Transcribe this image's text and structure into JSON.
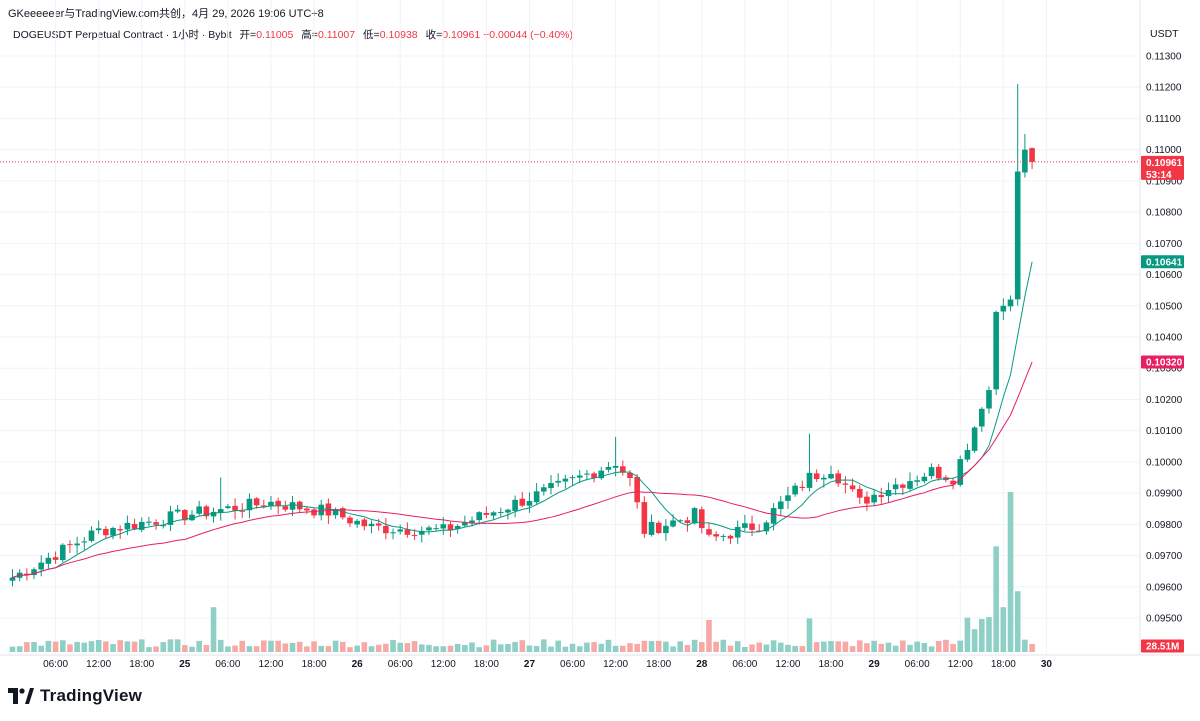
{
  "caption": "GKeeeeeer与TradingView.com共创，4月 29, 2026 19:06 UTC+8",
  "legend": {
    "symbol": "DOGEUSDT Perpetual Contract · 1小时 · Bybit",
    "open_label": "开=",
    "open": "0.11005",
    "high_label": "高=",
    "high": "0.11007",
    "low_label": "低=",
    "low": "0.10938",
    "close_label": "收=",
    "close": "0.10961",
    "change": "−0.00044 (−0.40%)"
  },
  "currency": "USDT",
  "brand": "TradingView",
  "colors": {
    "up": "#089981",
    "down": "#f23645",
    "vol_up": "#8ed0c6",
    "vol_down": "#f7a9a7",
    "ma_fast": "#089981",
    "ma_slow": "#e91e63"
  },
  "tags": {
    "last_price": "0.10961",
    "countdown": "53:14",
    "ma_fast": "0.10641",
    "ma_slow": "0.10320",
    "volume": "28.51M"
  },
  "chart_data": {
    "type": "candlestick",
    "ylim": [
      0.0945,
      0.1135
    ],
    "y_ticks": [
      "0.09500",
      "0.09600",
      "0.09700",
      "0.09800",
      "0.09900",
      "0.10000",
      "0.10100",
      "0.10200",
      "0.10300",
      "0.10400",
      "0.10500",
      "0.10600",
      "0.10700",
      "0.10800",
      "0.10900",
      "0.11000",
      "0.11100",
      "0.11200",
      "0.11300"
    ],
    "x_ticks": [
      "06:00",
      "12:00",
      "18:00",
      "25",
      "06:00",
      "12:00",
      "18:00",
      "26",
      "06:00",
      "12:00",
      "18:00",
      "27",
      "06:00",
      "12:00",
      "18:00",
      "28",
      "06:00",
      "12:00",
      "18:00",
      "29",
      "06:00",
      "12:00",
      "18:00",
      "30"
    ],
    "x_tick_bar_index": [
      6,
      12,
      18,
      24,
      30,
      36,
      42,
      48,
      54,
      60,
      66,
      72,
      78,
      84,
      90,
      96,
      102,
      108,
      114,
      120,
      126,
      132,
      138,
      144
    ],
    "last_price": 0.10961,
    "ma_fast_last": 0.10641,
    "ma_slow_last": 0.1032,
    "volume_last": "28.51M",
    "key_points": [
      {
        "bar": 0,
        "close": 0.0963
      },
      {
        "bar": 12,
        "close": 0.0978
      },
      {
        "bar": 24,
        "close": 0.0983
      },
      {
        "bar": 30,
        "close": 0.0985
      },
      {
        "bar": 36,
        "close": 0.0987
      },
      {
        "bar": 44,
        "close": 0.0984
      },
      {
        "bar": 50,
        "close": 0.0979
      },
      {
        "bar": 60,
        "close": 0.0978
      },
      {
        "bar": 68,
        "close": 0.0985
      },
      {
        "bar": 76,
        "close": 0.0992
      },
      {
        "bar": 84,
        "close": 0.1
      },
      {
        "bar": 86,
        "close": 0.0994
      },
      {
        "bar": 88,
        "close": 0.0978
      },
      {
        "bar": 95,
        "close": 0.0983
      },
      {
        "bar": 97,
        "close": 0.0975
      },
      {
        "bar": 104,
        "close": 0.098
      },
      {
        "bar": 111,
        "close": 0.0995
      },
      {
        "bar": 114,
        "close": 0.0998
      },
      {
        "bar": 118,
        "close": 0.0987
      },
      {
        "bar": 122,
        "close": 0.0992
      },
      {
        "bar": 128,
        "close": 0.0997
      },
      {
        "bar": 131,
        "close": 0.0995
      },
      {
        "bar": 134,
        "close": 0.1011
      },
      {
        "bar": 136,
        "close": 0.1023
      },
      {
        "bar": 137,
        "close": 0.1048
      },
      {
        "bar": 139,
        "close": 0.1052
      },
      {
        "bar": 140,
        "close": 0.1093
      },
      {
        "bar": 141,
        "close": 0.11
      },
      {
        "bar": 142,
        "close": 0.1096
      }
    ],
    "spikes": [
      {
        "bar": 29,
        "high": 0.0995
      },
      {
        "bar": 84,
        "high": 0.1008
      },
      {
        "bar": 111,
        "high": 0.1009
      },
      {
        "bar": 140,
        "high": 0.1121
      },
      {
        "bar": 141,
        "high": 0.1105
      }
    ],
    "volume_spikes": [
      {
        "bar": 28,
        "v": 0.28
      },
      {
        "bar": 97,
        "v": 0.2
      },
      {
        "bar": 111,
        "v": 0.21
      },
      {
        "bar": 137,
        "v": 0.66
      },
      {
        "bar": 139,
        "v": 1.0
      },
      {
        "bar": 140,
        "v": 0.38
      }
    ]
  }
}
